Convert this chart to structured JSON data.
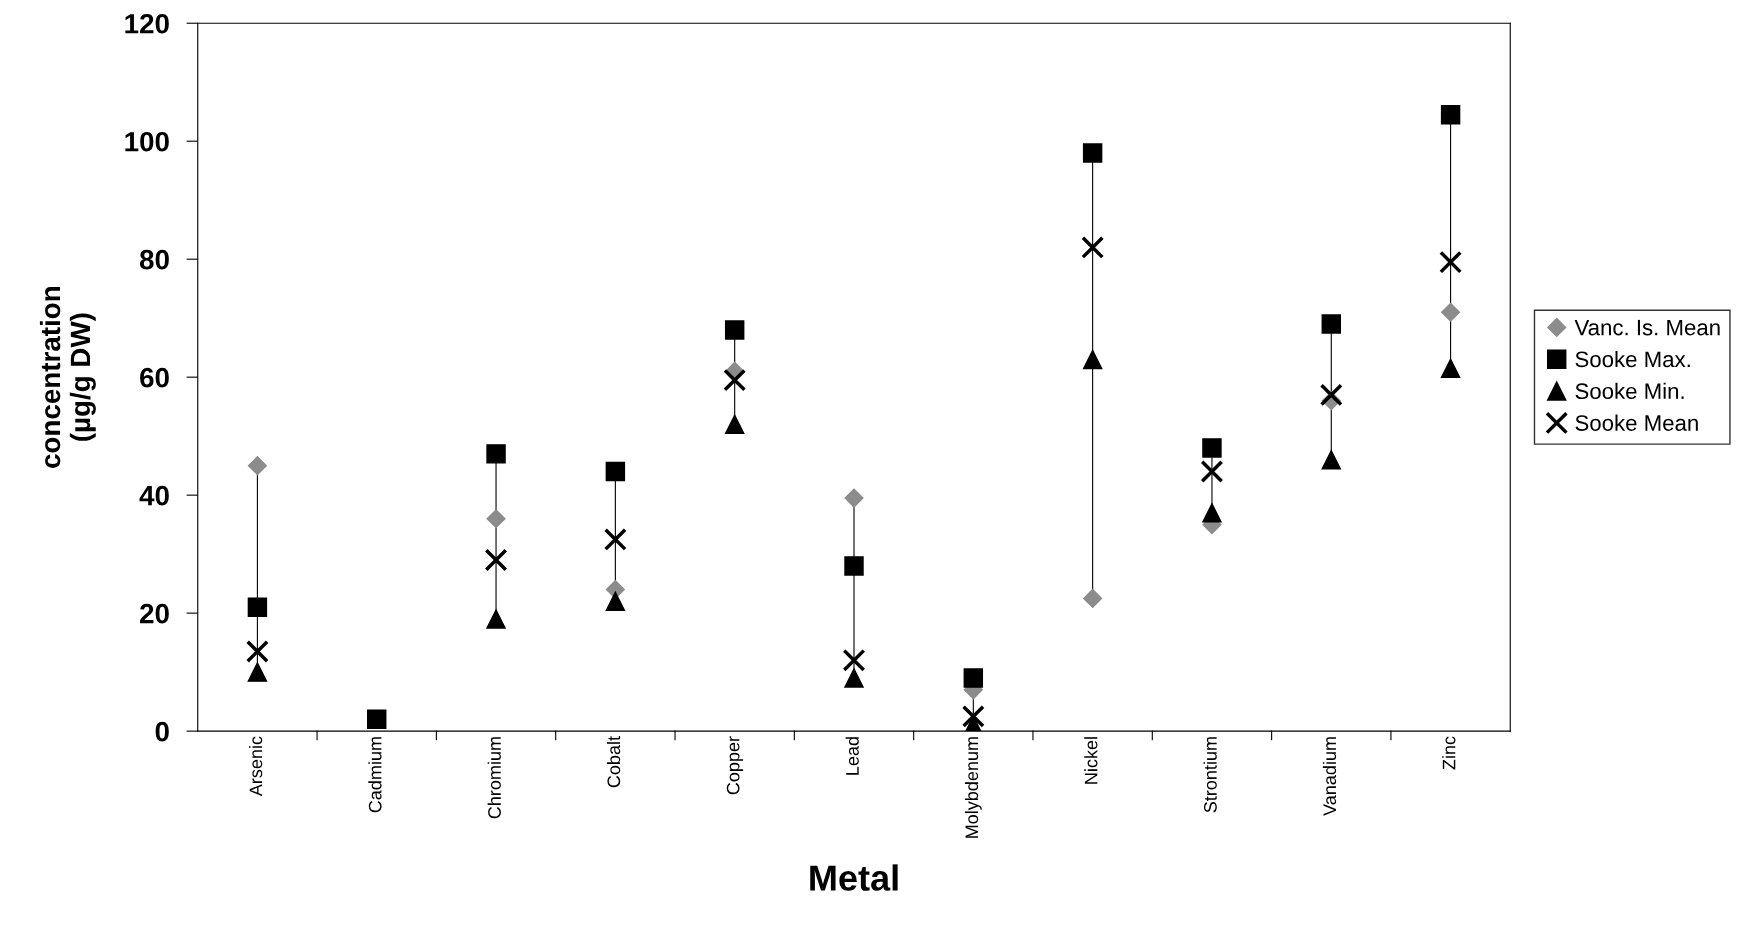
{
  "chart_data": {
    "type": "scatter",
    "xlabel": "Metal",
    "ylabel": "concentration\n(µg/g DW)",
    "categories": [
      "Arsenic",
      "Cadmium",
      "Chromium",
      "Cobalt",
      "Copper",
      "Lead",
      "Molybdenum",
      "Nickel",
      "Strontium",
      "Vanadium",
      "Zinc"
    ],
    "series": [
      {
        "name": "Vanc. Is. Mean",
        "color": "#8c8c8c",
        "marker": "diamond",
        "values": [
          45,
          null,
          36,
          24,
          61,
          39.5,
          7,
          22.5,
          35,
          56,
          71
        ]
      },
      {
        "name": "Sooke Max.",
        "color": "#000000",
        "marker": "square",
        "values": [
          21,
          2,
          47,
          44,
          68,
          28,
          9,
          98,
          48,
          69,
          104.5
        ]
      },
      {
        "name": "Sooke Min.",
        "color": "#000000",
        "marker": "triangle",
        "values": [
          10,
          null,
          19,
          22,
          52,
          9,
          1,
          63,
          37,
          46,
          61.5
        ]
      },
      {
        "name": "Sooke Mean",
        "color": "#000000",
        "marker": "cross",
        "values": [
          13.5,
          null,
          29,
          32.5,
          59.5,
          12,
          2.5,
          82,
          44,
          57,
          79.5
        ]
      }
    ],
    "ylim": [
      0,
      120
    ],
    "yticks": [
      0,
      20,
      40,
      60,
      80,
      100,
      120
    ],
    "grid": false,
    "legend": "right"
  }
}
